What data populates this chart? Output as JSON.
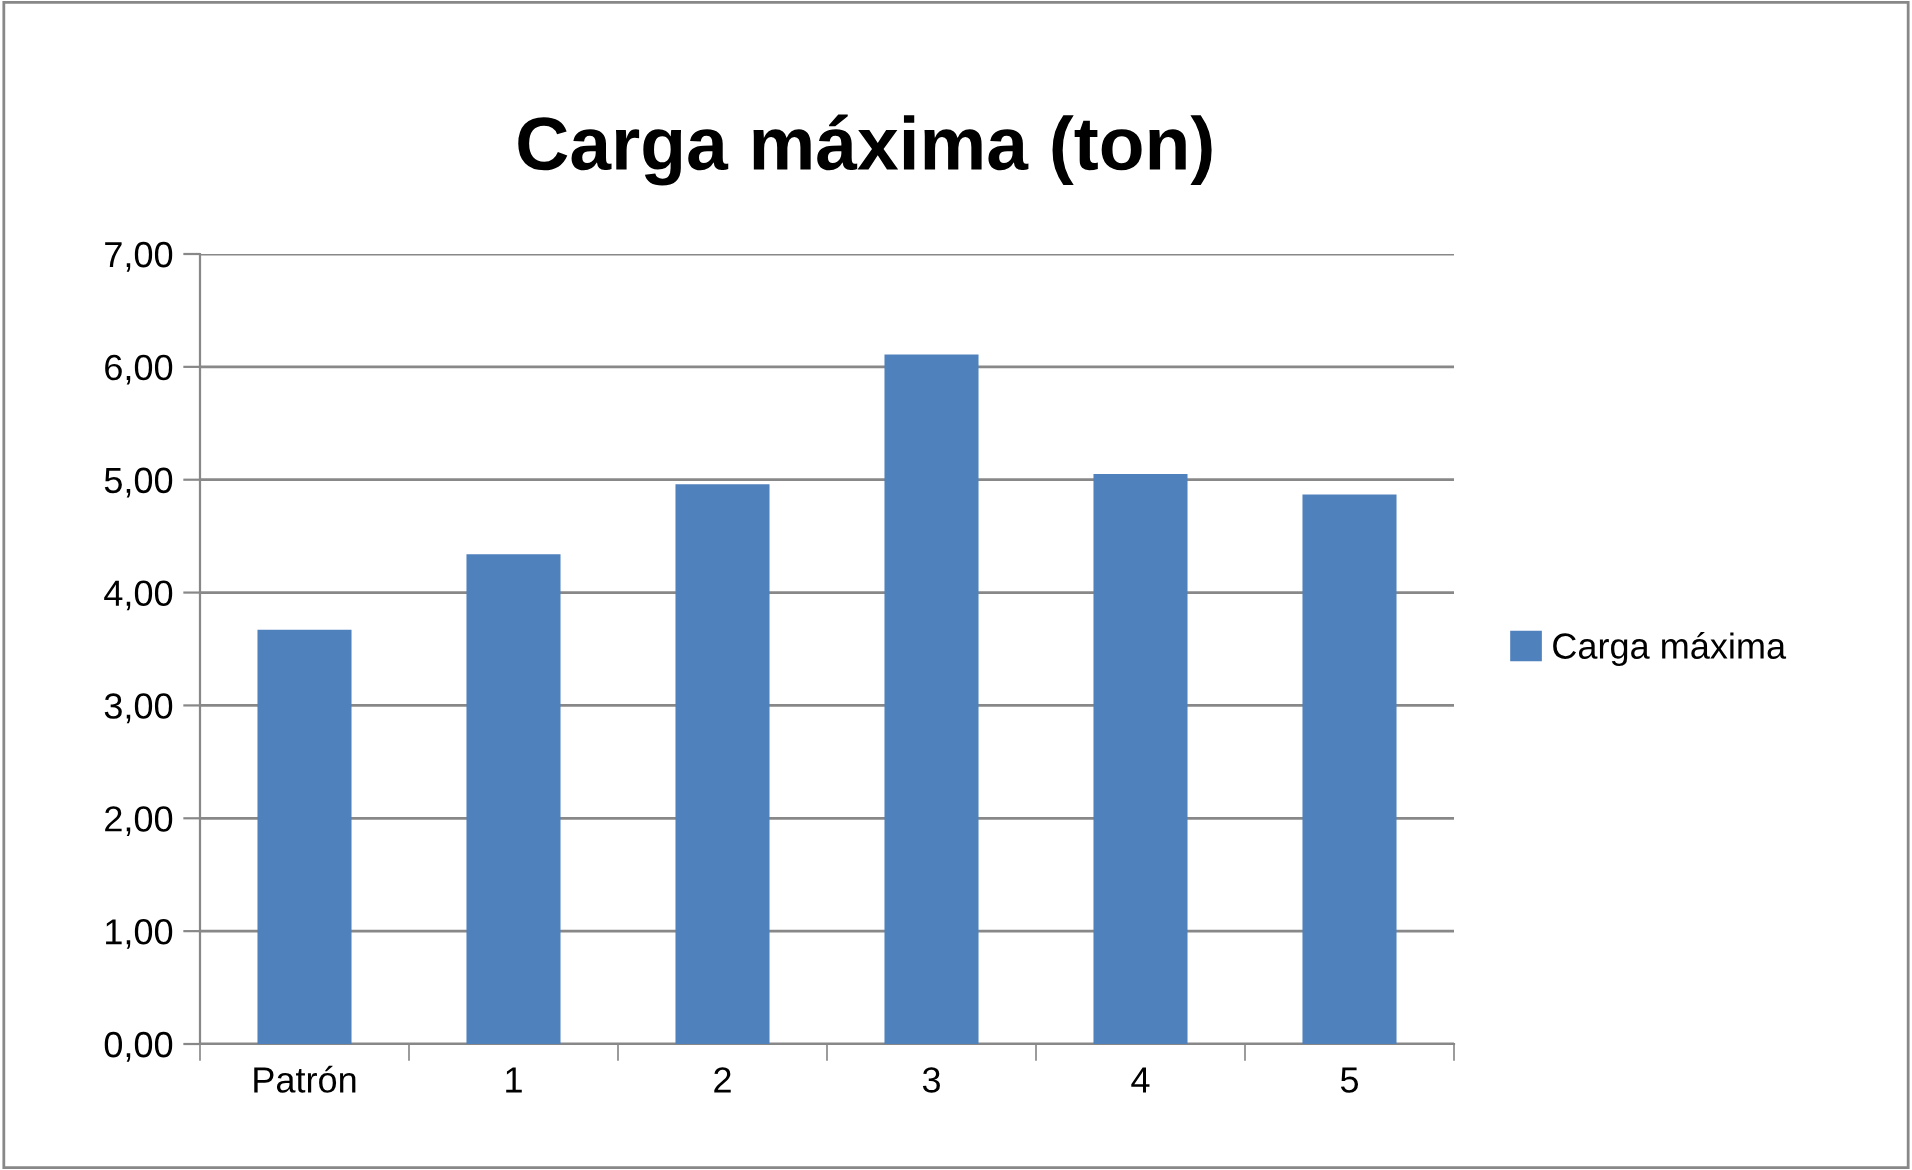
{
  "chart_data": {
    "type": "bar",
    "title": "Carga máxima (ton)",
    "categories": [
      "Patrón",
      "1",
      "2",
      "3",
      "4",
      "5"
    ],
    "series": [
      {
        "name": "Carga máxima",
        "color": "#4f81bd",
        "values": [
          3.67,
          4.34,
          4.96,
          6.11,
          5.05,
          4.87
        ]
      }
    ],
    "ylim": [
      0,
      7
    ],
    "yticks": [
      {
        "value": 0,
        "label": "0,00"
      },
      {
        "value": 1,
        "label": "1,00"
      },
      {
        "value": 2,
        "label": "2,00"
      },
      {
        "value": 3,
        "label": "3,00"
      },
      {
        "value": 4,
        "label": "4,00"
      },
      {
        "value": 5,
        "label": "5,00"
      },
      {
        "value": 6,
        "label": "6,00"
      },
      {
        "value": 7,
        "label": "7,00"
      }
    ],
    "grid": "y",
    "legend": "right"
  }
}
